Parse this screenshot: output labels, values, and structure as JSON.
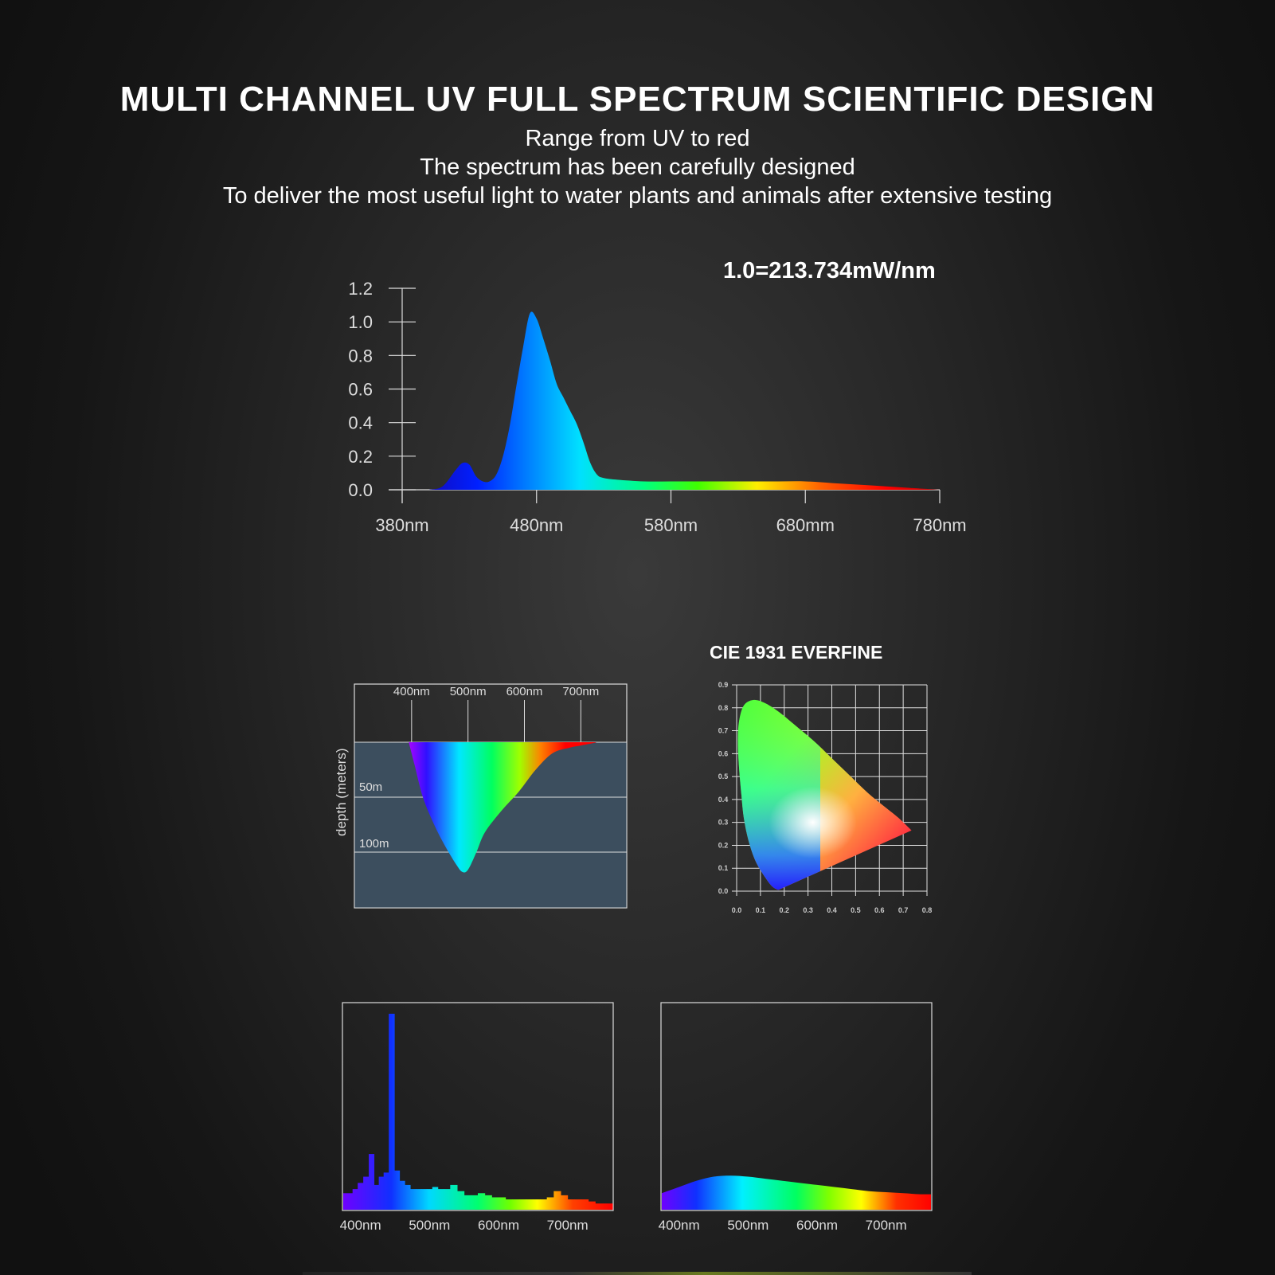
{
  "title": "MULTI CHANNEL UV FULL SPECTRUM SCIENTIFIC DESIGN",
  "subtitle_lines": [
    "Range from UV to red",
    "The spectrum has been carefully designed",
    "To deliver the most useful light to water plants and animals after extensive testing"
  ],
  "colors": {
    "background": "#1e1e1e",
    "text": "#ffffff",
    "water_panel": "#3c4e5e"
  },
  "chart_data": [
    {
      "type": "area",
      "annotation": "1.0=213.734mW/nm",
      "x_ticks": [
        "380nm",
        "480nm",
        "580nm",
        "680mm",
        "780nm"
      ],
      "y_ticks": [
        "0.0",
        "0.2",
        "0.4",
        "0.6",
        "0.8",
        "1.0",
        "1.2"
      ],
      "xlim": [
        380,
        780
      ],
      "ylim": [
        0,
        1.2
      ],
      "x": [
        400,
        410,
        420,
        425,
        430,
        435,
        440,
        445,
        450,
        455,
        460,
        465,
        470,
        475,
        480,
        485,
        490,
        495,
        500,
        505,
        510,
        515,
        520,
        525,
        530,
        540,
        560,
        580,
        600,
        620,
        640,
        660,
        680,
        700,
        720,
        740,
        760,
        780
      ],
      "values": [
        0.0,
        0.02,
        0.12,
        0.16,
        0.15,
        0.08,
        0.05,
        0.05,
        0.09,
        0.2,
        0.38,
        0.62,
        0.85,
        1.05,
        1.02,
        0.9,
        0.77,
        0.63,
        0.55,
        0.47,
        0.39,
        0.28,
        0.16,
        0.09,
        0.07,
        0.06,
        0.05,
        0.05,
        0.05,
        0.05,
        0.05,
        0.05,
        0.05,
        0.04,
        0.03,
        0.02,
        0.01,
        0.0
      ]
    },
    {
      "type": "area",
      "x_ticks": [
        "400nm",
        "500nm",
        "600nm",
        "700nm"
      ],
      "ylabel": "depth (meters)",
      "depth_labels": [
        "50m",
        "100m"
      ],
      "xlim": [
        300,
        780
      ],
      "ylim": [
        0,
        150
      ],
      "penetration_depth": {
        "x": [
          395,
          405,
          420,
          440,
          460,
          480,
          490,
          500,
          515,
          530,
          560,
          590,
          620,
          650,
          680,
          700,
          720,
          728
        ],
        "values": [
          0,
          20,
          50,
          75,
          95,
          112,
          118,
          116,
          100,
          82,
          62,
          45,
          25,
          10,
          5,
          3,
          1,
          0
        ]
      }
    },
    {
      "type": "scatter",
      "title": "CIE 1931 EVERFINE",
      "x_ticks": [
        "0.0",
        "0.1",
        "0.2",
        "0.3",
        "0.4",
        "0.5",
        "0.6",
        "0.7",
        "0.8"
      ],
      "y_ticks": [
        "0.0",
        "0.1",
        "0.2",
        "0.3",
        "0.4",
        "0.5",
        "0.6",
        "0.7",
        "0.8",
        "0.9"
      ],
      "xlim": [
        0,
        0.8
      ],
      "ylim": [
        0,
        0.9
      ],
      "white_point": [
        0.32,
        0.3
      ],
      "locus": {
        "x": [
          0.175,
          0.15,
          0.12,
          0.08,
          0.05,
          0.03,
          0.02,
          0.01,
          0.005,
          0.01,
          0.03,
          0.07,
          0.12,
          0.18,
          0.25,
          0.33,
          0.41,
          0.48,
          0.55,
          0.62,
          0.68,
          0.735,
          0.175
        ],
        "values": [
          0.005,
          0.02,
          0.06,
          0.13,
          0.22,
          0.32,
          0.42,
          0.54,
          0.65,
          0.74,
          0.81,
          0.834,
          0.82,
          0.78,
          0.72,
          0.65,
          0.57,
          0.5,
          0.43,
          0.37,
          0.32,
          0.265,
          0.005
        ]
      }
    },
    {
      "type": "bar",
      "x_ticks": [
        "400nm",
        "500nm",
        "600nm",
        "700nm"
      ],
      "xlim": [
        375,
        765
      ],
      "ylim": [
        0,
        1
      ],
      "x": [
        385,
        392,
        400,
        408,
        416,
        423,
        430,
        437,
        445,
        453,
        460,
        468,
        476,
        484,
        492,
        500,
        508,
        516,
        525,
        535,
        545,
        555,
        565,
        575,
        585,
        595,
        605,
        615,
        625,
        635,
        645,
        655,
        665,
        675,
        685,
        695,
        705,
        715,
        725,
        735,
        745
      ],
      "values": [
        0.08,
        0.1,
        0.13,
        0.16,
        0.27,
        0.12,
        0.16,
        0.18,
        0.95,
        0.19,
        0.14,
        0.12,
        0.1,
        0.1,
        0.1,
        0.1,
        0.11,
        0.1,
        0.1,
        0.12,
        0.09,
        0.07,
        0.07,
        0.08,
        0.07,
        0.06,
        0.06,
        0.05,
        0.05,
        0.05,
        0.05,
        0.05,
        0.05,
        0.06,
        0.09,
        0.07,
        0.05,
        0.05,
        0.05,
        0.04,
        0.03
      ]
    },
    {
      "type": "area",
      "x_ticks": [
        "400nm",
        "500nm",
        "600nm",
        "700nm"
      ],
      "xlim": [
        375,
        765
      ],
      "ylim": [
        0,
        1
      ],
      "x": [
        375,
        400,
        425,
        450,
        475,
        500,
        525,
        550,
        575,
        600,
        625,
        650,
        675,
        700,
        725,
        750,
        765
      ],
      "values": [
        0.08,
        0.11,
        0.14,
        0.16,
        0.165,
        0.16,
        0.15,
        0.14,
        0.13,
        0.12,
        0.11,
        0.1,
        0.09,
        0.085,
        0.08,
        0.075,
        0.075
      ]
    }
  ]
}
